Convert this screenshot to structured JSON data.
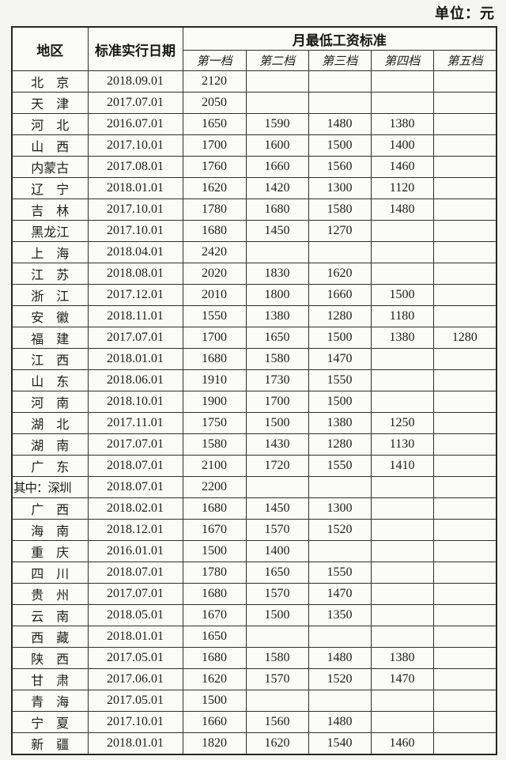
{
  "page": {
    "unit_label": "单位：元"
  },
  "table": {
    "headers": {
      "region": "地区",
      "date": "标准实行日期",
      "wage_group": "月最低工资标准",
      "tiers": [
        "第一档",
        "第二档",
        "第三档",
        "第四档",
        "第五档"
      ]
    },
    "rows": [
      {
        "region": "北　京",
        "date": "2018.09.01",
        "tiers": [
          "2120",
          "",
          "",
          "",
          ""
        ]
      },
      {
        "region": "天　津",
        "date": "2017.07.01",
        "tiers": [
          "2050",
          "",
          "",
          "",
          ""
        ]
      },
      {
        "region": "河　北",
        "date": "2016.07.01",
        "tiers": [
          "1650",
          "1590",
          "1480",
          "1380",
          ""
        ]
      },
      {
        "region": "山　西",
        "date": "2017.10.01",
        "tiers": [
          "1700",
          "1600",
          "1500",
          "1400",
          ""
        ]
      },
      {
        "region": "内蒙古",
        "date": "2017.08.01",
        "tiers": [
          "1760",
          "1660",
          "1560",
          "1460",
          ""
        ]
      },
      {
        "region": "辽　宁",
        "date": "2018.01.01",
        "tiers": [
          "1620",
          "1420",
          "1300",
          "1120",
          ""
        ]
      },
      {
        "region": "吉　林",
        "date": "2017.10.01",
        "tiers": [
          "1780",
          "1680",
          "1580",
          "1480",
          ""
        ]
      },
      {
        "region": "黑龙江",
        "date": "2017.10.01",
        "tiers": [
          "1680",
          "1450",
          "1270",
          "",
          ""
        ]
      },
      {
        "region": "上　海",
        "date": "2018.04.01",
        "tiers": [
          "2420",
          "",
          "",
          "",
          ""
        ]
      },
      {
        "region": "江　苏",
        "date": "2018.08.01",
        "tiers": [
          "2020",
          "1830",
          "1620",
          "",
          ""
        ]
      },
      {
        "region": "浙　江",
        "date": "2017.12.01",
        "tiers": [
          "2010",
          "1800",
          "1660",
          "1500",
          ""
        ]
      },
      {
        "region": "安　徽",
        "date": "2018.11.01",
        "tiers": [
          "1550",
          "1380",
          "1280",
          "1180",
          ""
        ]
      },
      {
        "region": "福　建",
        "date": "2017.07.01",
        "tiers": [
          "1700",
          "1650",
          "1500",
          "1380",
          "1280"
        ]
      },
      {
        "region": "江　西",
        "date": "2018.01.01",
        "tiers": [
          "1680",
          "1580",
          "1470",
          "",
          ""
        ]
      },
      {
        "region": "山　东",
        "date": "2018.06.01",
        "tiers": [
          "1910",
          "1730",
          "1550",
          "",
          ""
        ]
      },
      {
        "region": "河　南",
        "date": "2018.10.01",
        "tiers": [
          "1900",
          "1700",
          "1500",
          "",
          ""
        ]
      },
      {
        "region": "湖　北",
        "date": "2017.11.01",
        "tiers": [
          "1750",
          "1500",
          "1380",
          "1250",
          ""
        ]
      },
      {
        "region": "湖　南",
        "date": "2017.07.01",
        "tiers": [
          "1580",
          "1430",
          "1280",
          "1130",
          ""
        ]
      },
      {
        "region": "广　东",
        "date": "2018.07.01",
        "tiers": [
          "2100",
          "1720",
          "1550",
          "1410",
          ""
        ]
      },
      {
        "region": "其中：深圳",
        "date": "2018.07.01",
        "tiers": [
          "2200",
          "",
          "",
          "",
          ""
        ]
      },
      {
        "region": "广　西",
        "date": "2018.02.01",
        "tiers": [
          "1680",
          "1450",
          "1300",
          "",
          ""
        ]
      },
      {
        "region": "海　南",
        "date": "2018.12.01",
        "tiers": [
          "1670",
          "1570",
          "1520",
          "",
          ""
        ]
      },
      {
        "region": "重　庆",
        "date": "2016.01.01",
        "tiers": [
          "1500",
          "1400",
          "",
          "",
          ""
        ]
      },
      {
        "region": "四　川",
        "date": "2018.07.01",
        "tiers": [
          "1780",
          "1650",
          "1550",
          "",
          ""
        ]
      },
      {
        "region": "贵　州",
        "date": "2017.07.01",
        "tiers": [
          "1680",
          "1570",
          "1470",
          "",
          ""
        ]
      },
      {
        "region": "云　南",
        "date": "2018.05.01",
        "tiers": [
          "1670",
          "1500",
          "1350",
          "",
          ""
        ]
      },
      {
        "region": "西　藏",
        "date": "2018.01.01",
        "tiers": [
          "1650",
          "",
          "",
          "",
          ""
        ]
      },
      {
        "region": "陕　西",
        "date": "2017.05.01",
        "tiers": [
          "1680",
          "1580",
          "1480",
          "1380",
          ""
        ]
      },
      {
        "region": "甘　肃",
        "date": "2017.06.01",
        "tiers": [
          "1620",
          "1570",
          "1520",
          "1470",
          ""
        ]
      },
      {
        "region": "青　海",
        "date": "2017.05.01",
        "tiers": [
          "1500",
          "",
          "",
          "",
          ""
        ]
      },
      {
        "region": "宁　夏",
        "date": "2017.10.01",
        "tiers": [
          "1660",
          "1560",
          "1480",
          "",
          ""
        ]
      },
      {
        "region": "新　疆",
        "date": "2018.01.01",
        "tiers": [
          "1820",
          "1620",
          "1540",
          "1460",
          ""
        ]
      }
    ]
  }
}
